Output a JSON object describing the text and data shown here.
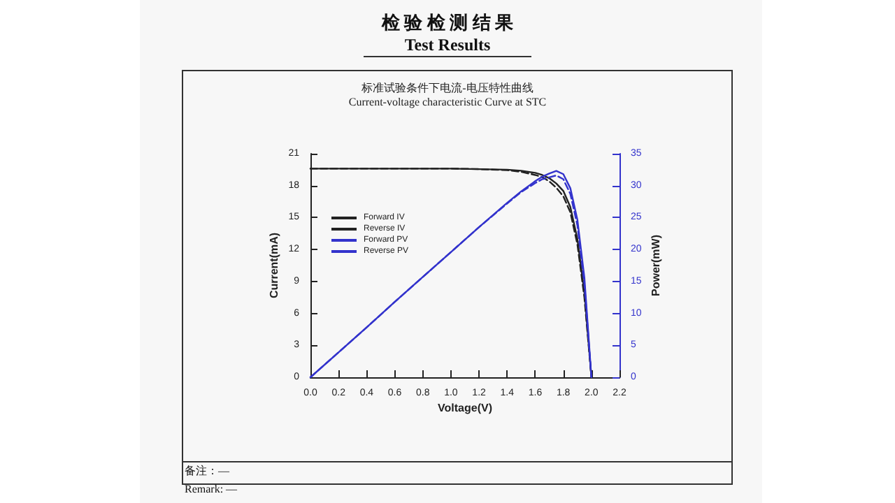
{
  "chart_data": {
    "type": "line",
    "title": "标准试验条件下电流-电压特性曲线",
    "subtitle": "Current-voltage characteristic Curve at STC",
    "xlabel": "Voltage(V)",
    "ylabel": "Current(mA)",
    "y2label": "Power(mW)",
    "annotations": [
      "检 验 检 测 结 果",
      "Test Results",
      "备注：—",
      "Remark: —"
    ],
    "x": [
      0,
      0.2,
      0.4,
      0.6,
      0.8,
      1.0,
      1.2,
      1.4,
      1.5,
      1.6,
      1.65,
      1.7,
      1.75,
      1.8,
      1.85,
      1.9,
      1.95,
      2.0
    ],
    "series": [
      {
        "name": "Forward IV",
        "color": "#222222",
        "line_style": "solid",
        "values": [
          19.6,
          19.6,
          19.6,
          19.6,
          19.6,
          19.6,
          19.55,
          19.5,
          19.4,
          19.2,
          19.0,
          18.7,
          18.2,
          17.5,
          16.0,
          13.0,
          8.0,
          0
        ]
      },
      {
        "name": "Reverse IV",
        "color": "#222222",
        "line_style": "dashed",
        "values": [
          19.6,
          19.6,
          19.6,
          19.6,
          19.6,
          19.6,
          19.55,
          19.45,
          19.3,
          19.0,
          18.8,
          18.4,
          17.8,
          17.0,
          15.5,
          12.5,
          7.5,
          0
        ]
      },
      {
        "name": "Forward PV",
        "color": "#3333cc",
        "line_style": "solid",
        "axis": "y2",
        "values": [
          0,
          3.9,
          7.8,
          11.8,
          15.7,
          19.6,
          23.5,
          27.3,
          29.1,
          30.7,
          31.4,
          31.9,
          32.3,
          31.8,
          29.6,
          24.7,
          15.6,
          0
        ]
      },
      {
        "name": "Reverse PV",
        "color": "#3333cc",
        "line_style": "dashed",
        "axis": "y2",
        "values": [
          0,
          3.9,
          7.8,
          11.8,
          15.7,
          19.6,
          23.5,
          27.2,
          29.0,
          30.4,
          31.0,
          31.3,
          31.6,
          31.0,
          28.7,
          23.8,
          14.6,
          0
        ]
      }
    ],
    "xlim": [
      0,
      2.2
    ],
    "xticks": [
      {
        "value": 0,
        "label": "0.0"
      },
      0.2,
      0.4,
      0.6,
      0.8,
      {
        "value": 1,
        "label": "1.0"
      },
      1.2,
      1.4,
      1.6,
      1.8,
      {
        "value": 2,
        "label": "2.0"
      },
      2.2
    ],
    "ylim": [
      0,
      21
    ],
    "yticks": [
      0,
      3,
      6,
      9,
      12,
      15,
      18,
      21
    ],
    "y2lim": [
      0,
      35
    ],
    "y2ticks": [
      0,
      5,
      10,
      15,
      20,
      25,
      30,
      35
    ],
    "grid": false,
    "legend": "top left",
    "marker": "none"
  }
}
